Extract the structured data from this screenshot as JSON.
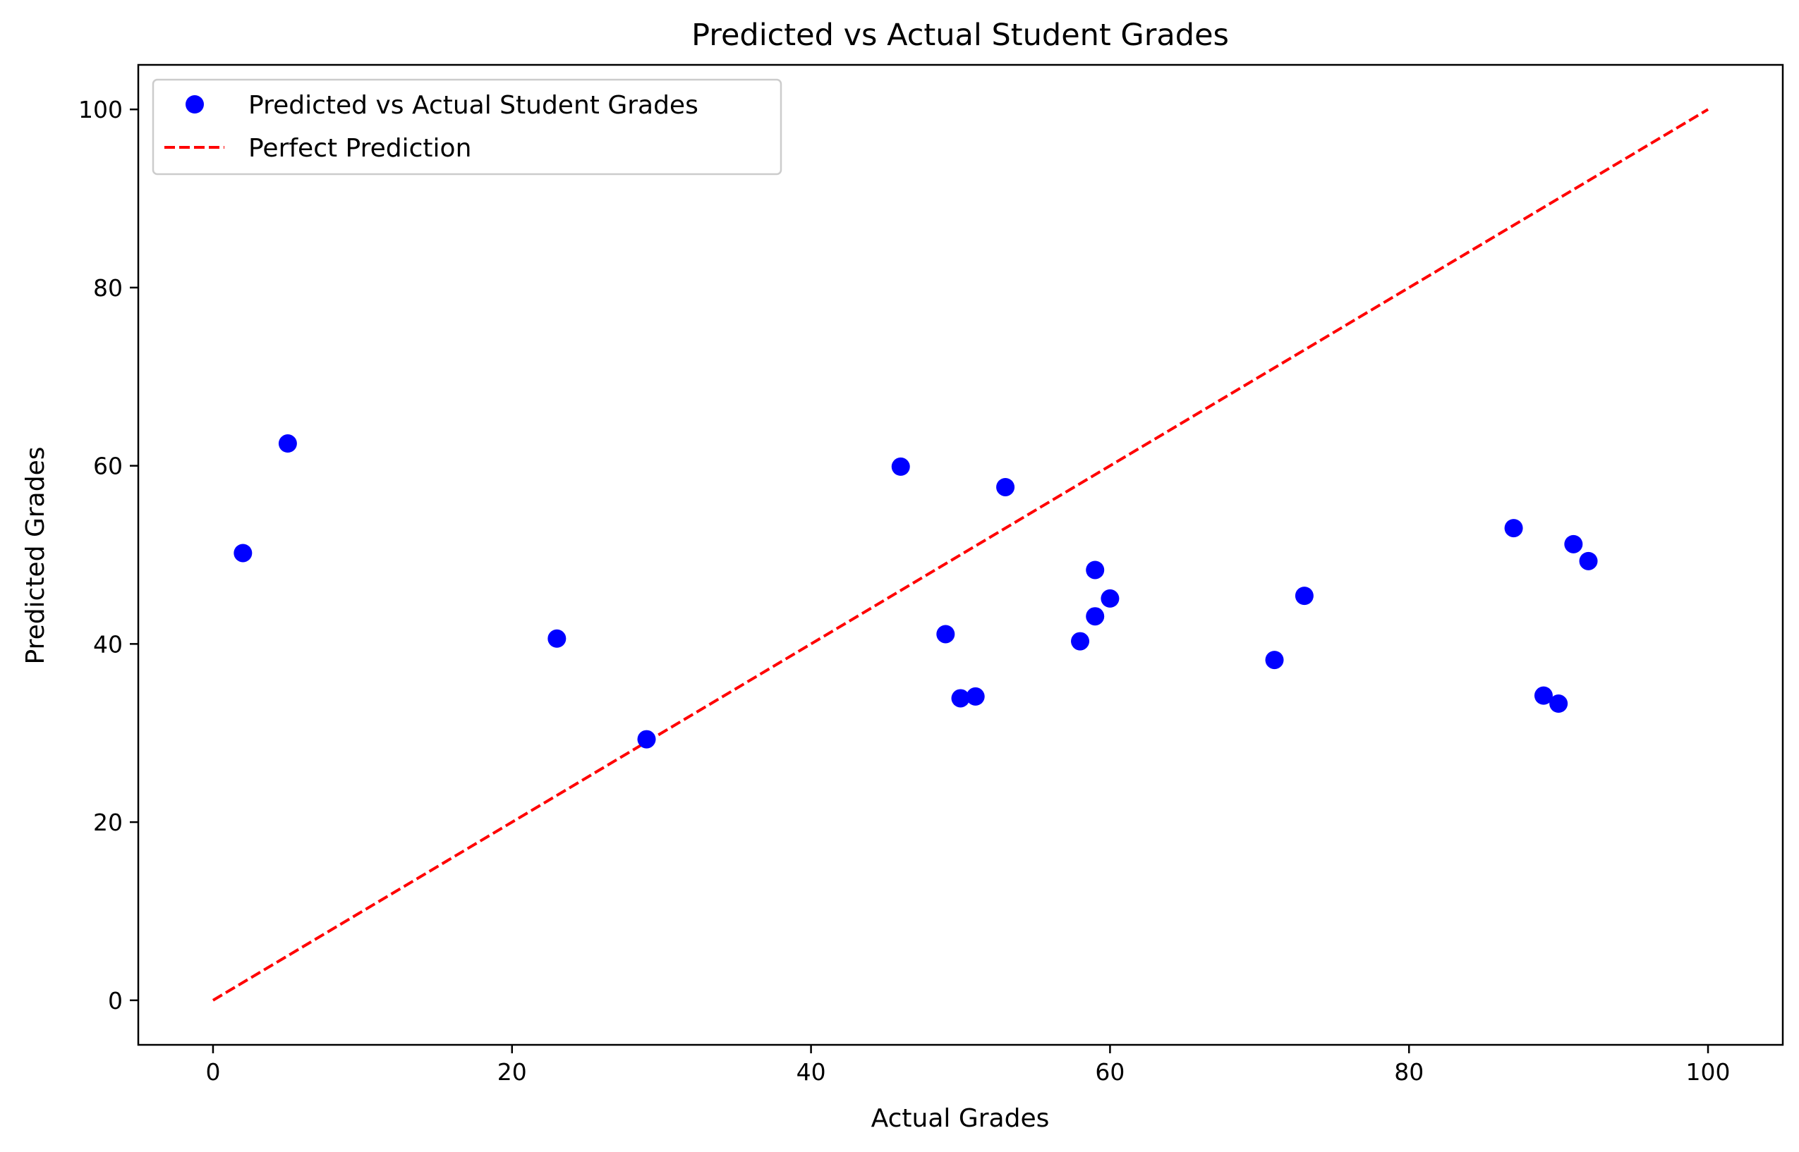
{
  "chart_data": {
    "type": "scatter",
    "title": "Predicted vs Actual Student Grades",
    "xlabel": "Actual Grades",
    "ylabel": "Predicted Grades",
    "xlim": [
      -5,
      105
    ],
    "ylim": [
      -5,
      105
    ],
    "xticks": [
      0,
      20,
      40,
      60,
      80,
      100
    ],
    "yticks": [
      0,
      20,
      40,
      60,
      80,
      100
    ],
    "grid": false,
    "legend_position": "top-left",
    "series": [
      {
        "name": "Predicted vs Actual Student Grades",
        "kind": "scatter",
        "color": "#0000ff",
        "points": [
          {
            "x": 2,
            "y": 50.2
          },
          {
            "x": 5,
            "y": 62.5
          },
          {
            "x": 23,
            "y": 40.6
          },
          {
            "x": 29,
            "y": 29.3
          },
          {
            "x": 46,
            "y": 59.9
          },
          {
            "x": 49,
            "y": 41.1
          },
          {
            "x": 50,
            "y": 33.9
          },
          {
            "x": 51,
            "y": 34.1
          },
          {
            "x": 53,
            "y": 57.6
          },
          {
            "x": 58,
            "y": 40.3
          },
          {
            "x": 59,
            "y": 48.3
          },
          {
            "x": 59,
            "y": 43.1
          },
          {
            "x": 60,
            "y": 45.1
          },
          {
            "x": 71,
            "y": 38.2
          },
          {
            "x": 73,
            "y": 45.4
          },
          {
            "x": 87,
            "y": 53.0
          },
          {
            "x": 89,
            "y": 34.2
          },
          {
            "x": 90,
            "y": 33.3
          },
          {
            "x": 91,
            "y": 51.2
          },
          {
            "x": 92,
            "y": 49.3
          }
        ]
      },
      {
        "name": "Perfect Prediction",
        "kind": "line",
        "style": "dashed",
        "color": "#ff0000",
        "points": [
          {
            "x": 0,
            "y": 0
          },
          {
            "x": 100,
            "y": 100
          }
        ]
      }
    ]
  }
}
